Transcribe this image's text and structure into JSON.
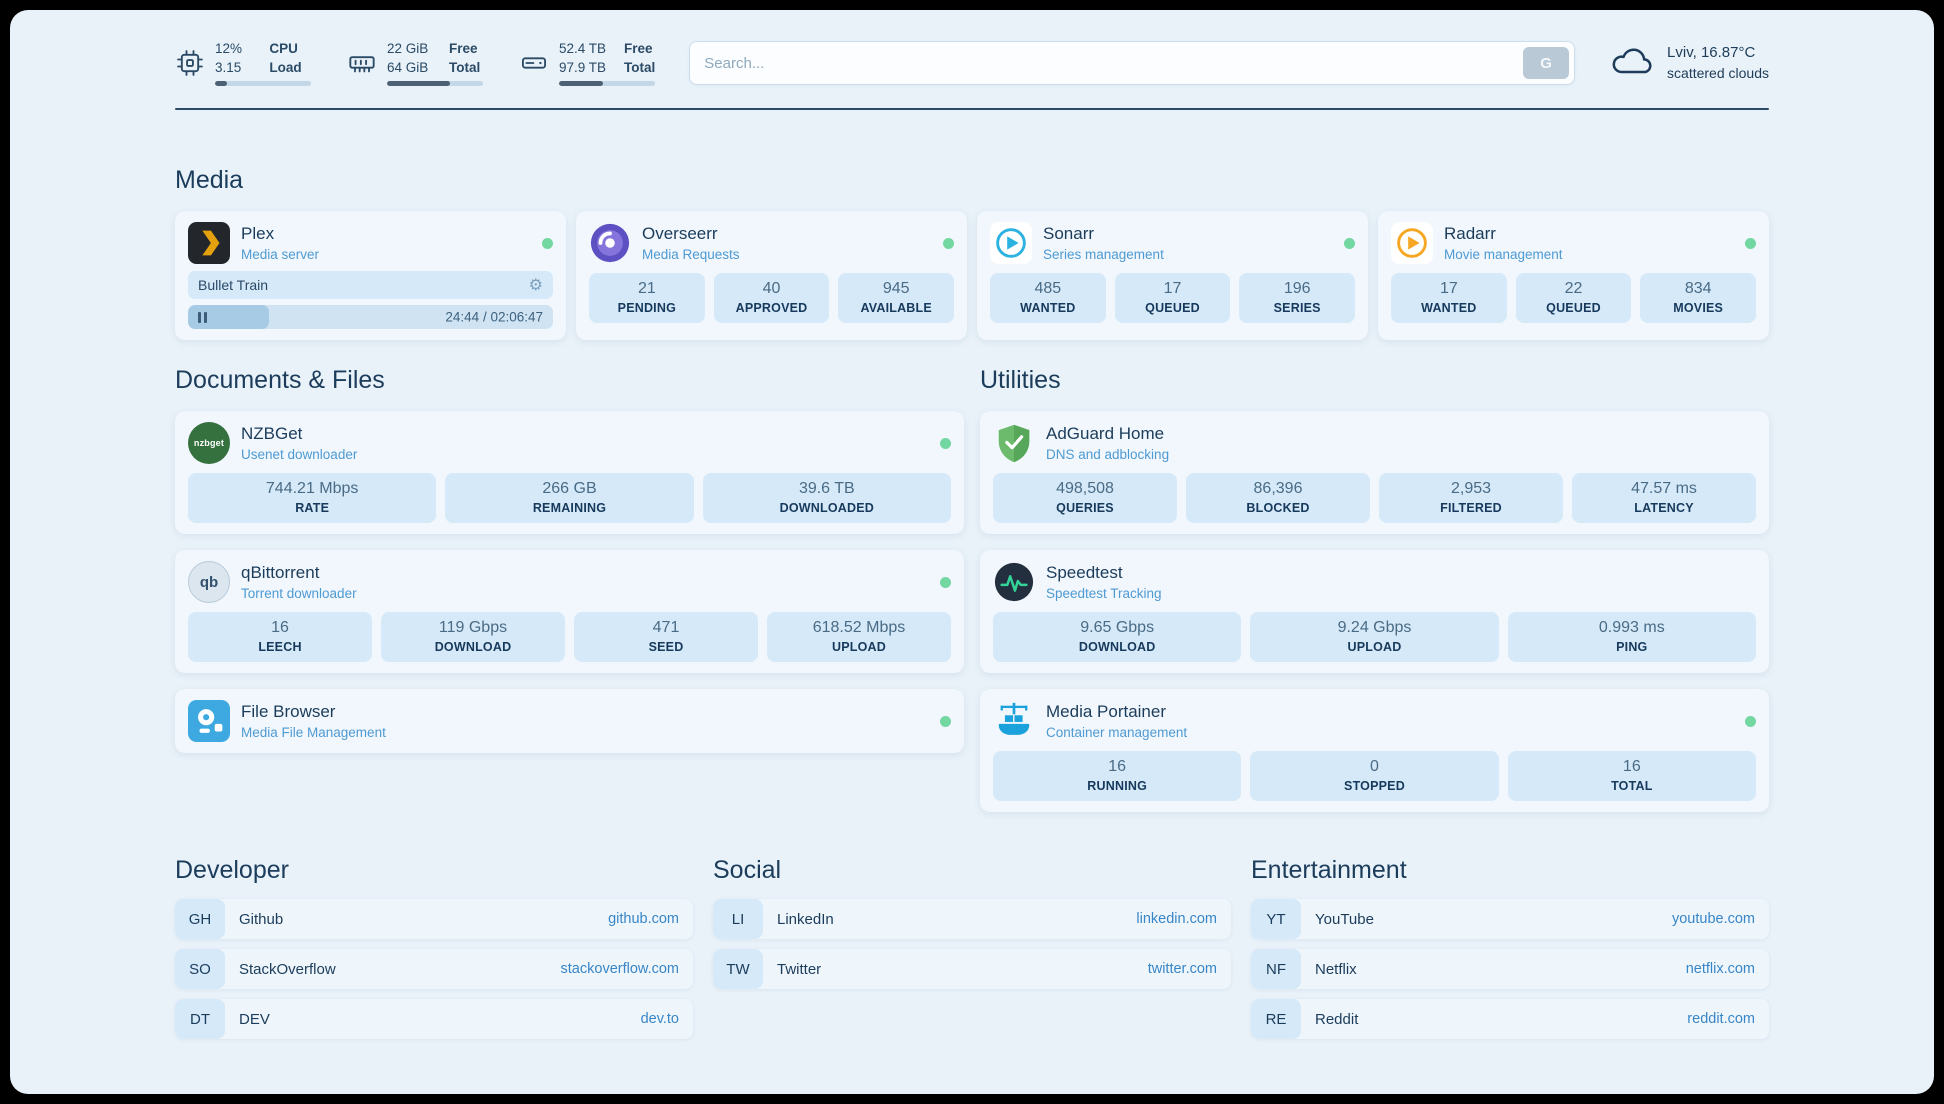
{
  "topbar": {
    "cpu": {
      "icon": "cpu-chip-icon",
      "value1": "12%",
      "label1": "CPU",
      "value2": "3.15",
      "label2": "Load",
      "progress": "12%"
    },
    "memory": {
      "icon": "memory-icon",
      "value1": "22 GiB",
      "label1": "Free",
      "value2": "64 GiB",
      "label2": "Total",
      "progress": "66%"
    },
    "disk": {
      "icon": "disk-icon",
      "value1": "52.4 TB",
      "label1": "Free",
      "value2": "97.9 TB",
      "label2": "Total",
      "progress": "46%"
    },
    "search": {
      "placeholder": "Search...",
      "button_label": "G"
    },
    "weather": {
      "icon": "cloud-icon",
      "location": "Lviv, 16.87°C",
      "condition": "scattered clouds"
    }
  },
  "sections": {
    "media": "Media",
    "documents": "Documents & Files",
    "utilities": "Utilities"
  },
  "services": {
    "plex": {
      "name": "Plex",
      "subtitle": "Media server",
      "now_playing": "Bullet Train",
      "time": "24:44 / 02:06:47",
      "progress": "19.5%"
    },
    "overseerr": {
      "name": "Overseerr",
      "subtitle": "Media Requests",
      "stats": [
        {
          "value": "21",
          "label": "PENDING"
        },
        {
          "value": "40",
          "label": "APPROVED"
        },
        {
          "value": "945",
          "label": "AVAILABLE"
        }
      ]
    },
    "sonarr": {
      "name": "Sonarr",
      "subtitle": "Series management",
      "stats": [
        {
          "value": "485",
          "label": "WANTED"
        },
        {
          "value": "17",
          "label": "QUEUED"
        },
        {
          "value": "196",
          "label": "SERIES"
        }
      ]
    },
    "radarr": {
      "name": "Radarr",
      "subtitle": "Movie management",
      "stats": [
        {
          "value": "17",
          "label": "WANTED"
        },
        {
          "value": "22",
          "label": "QUEUED"
        },
        {
          "value": "834",
          "label": "MOVIES"
        }
      ]
    },
    "nzbget": {
      "name": "NZBGet",
      "subtitle": "Usenet downloader",
      "icon_text": "nzbget",
      "stats": [
        {
          "value": "744.21 Mbps",
          "label": "RATE"
        },
        {
          "value": "266 GB",
          "label": "REMAINING"
        },
        {
          "value": "39.6 TB",
          "label": "DOWNLOADED"
        }
      ]
    },
    "qbittorrent": {
      "name": "qBittorrent",
      "subtitle": "Torrent downloader",
      "icon_text": "qb",
      "stats": [
        {
          "value": "16",
          "label": "LEECH"
        },
        {
          "value": "119 Gbps",
          "label": "DOWNLOAD"
        },
        {
          "value": "471",
          "label": "SEED"
        },
        {
          "value": "618.52 Mbps",
          "label": "UPLOAD"
        }
      ]
    },
    "filebrowser": {
      "name": "File Browser",
      "subtitle": "Media File Management"
    },
    "adguard": {
      "name": "AdGuard Home",
      "subtitle": "DNS and adblocking",
      "stats": [
        {
          "value": "498,508",
          "label": "QUERIES"
        },
        {
          "value": "86,396",
          "label": "BLOCKED"
        },
        {
          "value": "2,953",
          "label": "FILTERED"
        },
        {
          "value": "47.57 ms",
          "label": "LATENCY"
        }
      ]
    },
    "speedtest": {
      "name": "Speedtest",
      "subtitle": "Speedtest Tracking",
      "stats": [
        {
          "value": "9.65 Gbps",
          "label": "DOWNLOAD"
        },
        {
          "value": "9.24 Gbps",
          "label": "UPLOAD"
        },
        {
          "value": "0.993 ms",
          "label": "PING"
        }
      ]
    },
    "portainer": {
      "name": "Media Portainer",
      "subtitle": "Container management",
      "stats": [
        {
          "value": "16",
          "label": "RUNNING"
        },
        {
          "value": "0",
          "label": "STOPPED"
        },
        {
          "value": "16",
          "label": "TOTAL"
        }
      ]
    }
  },
  "bookmarks": {
    "developer": {
      "title": "Developer",
      "items": [
        {
          "abbr": "GH",
          "name": "Github",
          "url": "github.com"
        },
        {
          "abbr": "SO",
          "name": "StackOverflow",
          "url": "stackoverflow.com"
        },
        {
          "abbr": "DT",
          "name": "DEV",
          "url": "dev.to"
        }
      ]
    },
    "social": {
      "title": "Social",
      "items": [
        {
          "abbr": "LI",
          "name": "LinkedIn",
          "url": "linkedin.com"
        },
        {
          "abbr": "TW",
          "name": "Twitter",
          "url": "twitter.com"
        }
      ]
    },
    "entertainment": {
      "title": "Entertainment",
      "items": [
        {
          "abbr": "YT",
          "name": "YouTube",
          "url": "youtube.com"
        },
        {
          "abbr": "NF",
          "name": "Netflix",
          "url": "netflix.com"
        },
        {
          "abbr": "RE",
          "name": "Reddit",
          "url": "reddit.com"
        }
      ]
    }
  },
  "colors": {
    "accent_link": "#3886c8",
    "status_ok": "#72d7a0",
    "page_bg": "#e9f2f9"
  }
}
